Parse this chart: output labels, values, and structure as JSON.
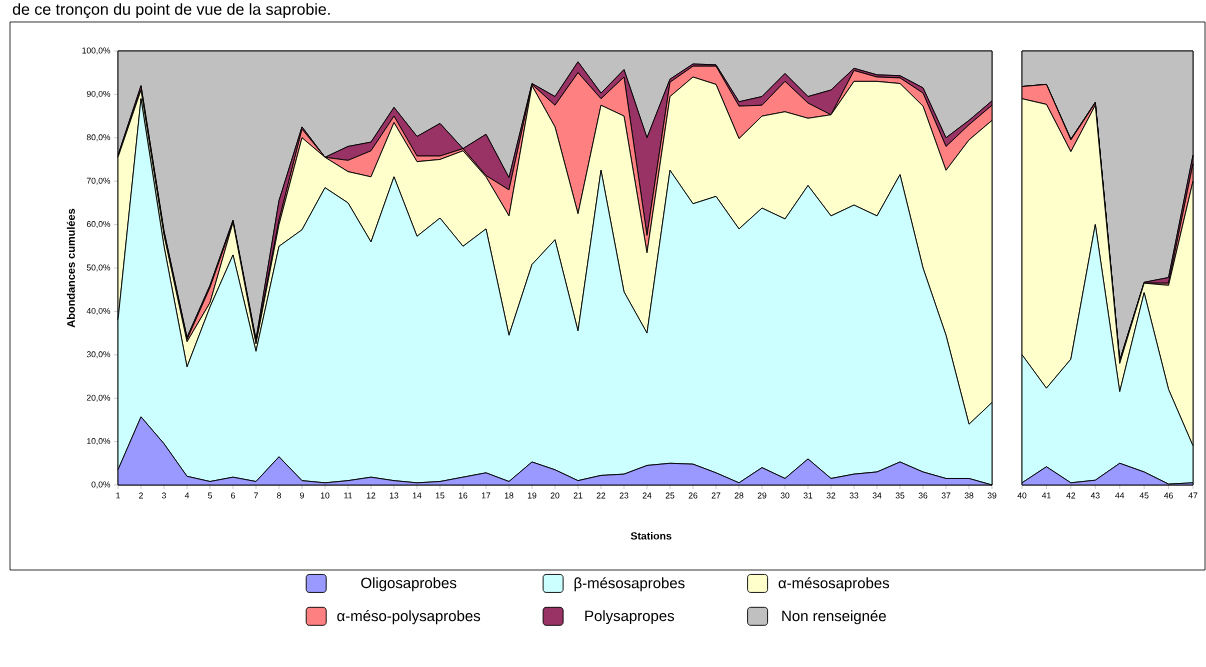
{
  "chart_data": [
    {
      "type": "area",
      "stacked": true,
      "xlabel": "Stations",
      "ylabel": "Abondances cumulées",
      "legend": "bottom",
      "annotations": [
        "de ce tronçon du point de vue de la saprobie."
      ],
      "categories": [
        "1",
        "2",
        "3",
        "4",
        "5",
        "6",
        "7",
        "8",
        "9",
        "10",
        "11",
        "12",
        "13",
        "14",
        "15",
        "16",
        "17",
        "18",
        "19",
        "20",
        "21",
        "22",
        "23",
        "24",
        "25",
        "26",
        "27",
        "28",
        "29",
        "30",
        "31",
        "32",
        "33",
        "34",
        "35",
        "36",
        "37",
        "38",
        "39"
      ],
      "ylim": [
        0,
        100
      ],
      "yticks": [
        {
          "value": 0,
          "label": "0,0%"
        },
        {
          "value": 10,
          "label": "10,0%"
        },
        {
          "value": 20,
          "label": "20,0%"
        },
        {
          "value": 30,
          "label": "30,0%"
        },
        {
          "value": 40,
          "label": "40,0%"
        },
        {
          "value": 50,
          "label": "50,0%"
        },
        {
          "value": 60,
          "label": "60,0%"
        },
        {
          "value": 70,
          "label": "70,0%"
        },
        {
          "value": 80,
          "label": "80,0%"
        },
        {
          "value": 90,
          "label": "90,0%"
        },
        {
          "value": 100,
          "label": "100,0%"
        }
      ],
      "series": [
        {
          "name": "Oligosaprobes",
          "color": "#9999ff",
          "values": [
            3.5,
            15.7,
            9.5,
            2,
            0.8,
            1.8,
            0.8,
            6.5,
            1,
            0.5,
            1,
            1.8,
            1,
            0.5,
            0.8,
            1.8,
            2.8,
            0.8,
            5.3,
            3.5,
            1,
            2.2,
            2.5,
            4.5,
            5,
            4.8,
            2.8,
            0.5,
            4,
            1.5,
            6,
            1.5,
            2.5,
            3,
            5.3,
            3,
            1.5,
            1.5,
            0
          ]
        },
        {
          "name": "β-mésosaprobes",
          "color": "#ccffff",
          "values": [
            34.5,
            73.3,
            45.5,
            25.2,
            40.2,
            51.2,
            30,
            48.5,
            57.8,
            68,
            64,
            54.2,
            70,
            56.8,
            60.7,
            53.2,
            56.2,
            33.7,
            45.5,
            53,
            34.5,
            70.3,
            42,
            30.5,
            67.5,
            60,
            63.7,
            58.5,
            59.8,
            59.8,
            63,
            60.5,
            62,
            59,
            66.2,
            47,
            33,
            12.5,
            19
          ]
        },
        {
          "name": "α-mésosaprobes",
          "color": "#ffffcc",
          "values": [
            37.5,
            2,
            2.5,
            5.8,
            1,
            7.5,
            1.7,
            5,
            21.2,
            7,
            7.2,
            15,
            12.5,
            17.2,
            13.5,
            22,
            12,
            27.5,
            41.2,
            26,
            27,
            15,
            40.5,
            18.5,
            17,
            29.2,
            25.8,
            20.8,
            21.2,
            24.7,
            15.5,
            23.3,
            28.5,
            31,
            21,
            37.3,
            38,
            65.5,
            65
          ]
        },
        {
          "name": "α-méso-polysaprobes",
          "color": "#ff8080",
          "values": [
            0,
            0,
            0.5,
            0.5,
            3.5,
            0,
            0.5,
            1,
            2,
            0,
            2.6,
            6,
            1.5,
            1.3,
            0.8,
            0.5,
            0.3,
            6,
            0.3,
            5,
            32.5,
            1.5,
            9,
            4,
            3.3,
            2.5,
            4.2,
            7.5,
            2.5,
            7,
            3.5,
            0,
            2.5,
            1,
            1.3,
            3,
            5.5,
            3.5,
            3.5
          ]
        },
        {
          "name": "Polysapropes",
          "color": "#993366",
          "values": [
            0.5,
            1,
            0.5,
            0.5,
            0.5,
            0.5,
            0.5,
            4.5,
            0.5,
            0,
            3.2,
            2,
            2,
            4.5,
            7.5,
            0,
            9.5,
            2.8,
            0.2,
            2,
            2.5,
            1.3,
            1.7,
            22.5,
            0.7,
            0.5,
            0.3,
            1,
            2,
            1.8,
            1.5,
            5.7,
            0.5,
            0.5,
            0.5,
            1.2,
            2,
            1,
            1
          ]
        },
        {
          "name": "Non renseignée",
          "color": "#c0c0c0",
          "values": [
            24,
            8,
            41.5,
            66,
            54,
            39,
            66.5,
            34.5,
            17.5,
            24.5,
            22,
            21,
            13,
            19.7,
            16.7,
            22.5,
            19.2,
            29.2,
            7.5,
            10.5,
            2.5,
            9.7,
            4.3,
            20,
            6.5,
            3,
            3.2,
            11.7,
            10.5,
            5.2,
            10.5,
            9,
            4,
            5.5,
            5.7,
            8.5,
            20,
            16,
            11.5
          ]
        }
      ]
    },
    {
      "type": "area",
      "stacked": true,
      "tick_labels": "x",
      "categories": [
        "40",
        "41",
        "42",
        "43",
        "44",
        "45",
        "46",
        "47"
      ],
      "ylim": [
        0,
        100
      ],
      "series": [
        {
          "color": "#9999ff",
          "values": [
            0.5,
            4.2,
            0.5,
            1.1,
            5,
            3,
            0.2,
            0.5
          ]
        },
        {
          "color": "#ccffff",
          "values": [
            29.5,
            18.1,
            28.5,
            58.9,
            16.5,
            41.3,
            21.8,
            8.5
          ]
        },
        {
          "color": "#ffffcc",
          "values": [
            59,
            65.4,
            47.8,
            27.5,
            6.5,
            2.2,
            24,
            61
          ]
        },
        {
          "color": "#ff8080",
          "values": [
            2.8,
            4.6,
            2.7,
            0.5,
            0.5,
            0,
            0.5,
            4
          ]
        },
        {
          "color": "#993366",
          "values": [
            0,
            0,
            0.2,
            0.2,
            0.2,
            0.2,
            1.3,
            2
          ]
        },
        {
          "color": "#c0c0c0",
          "values": [
            8.2,
            7.7,
            20.3,
            11.8,
            71.3,
            53.3,
            52.2,
            24
          ]
        }
      ]
    }
  ]
}
